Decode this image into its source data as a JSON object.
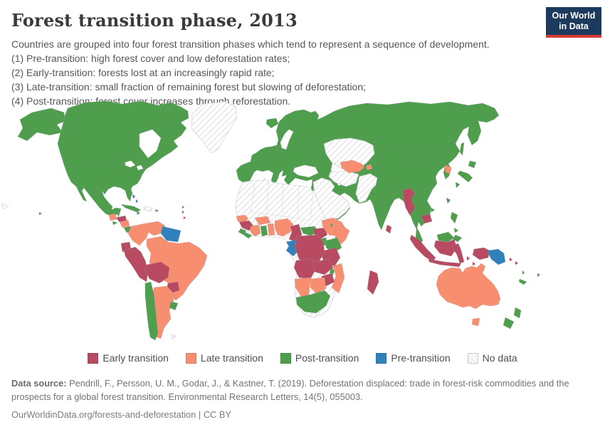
{
  "header": {
    "title": "Forest transition phase, 2013"
  },
  "logo": {
    "line1": "Our World",
    "line2": "in Data",
    "bg_color": "#1c3a5e",
    "bar_color": "#d73a32"
  },
  "subtitle": {
    "lines": [
      "Countries are grouped into four forest transition phases which tend to represent a sequence of development.",
      "(1) Pre-transition: high forest cover and low deforestation rates;",
      "(2) Early-transition: forests lost at an increasingly rapid rate;",
      "(3) Late-transition: small fraction of remaining forest but slowing of deforestation;",
      "(4) Post-transition: forest cover increases through reforestation."
    ]
  },
  "legend": {
    "items": [
      {
        "label": "Early transition",
        "phase": "early"
      },
      {
        "label": "Late transition",
        "phase": "late"
      },
      {
        "label": "Post-transition",
        "phase": "post"
      },
      {
        "label": "Pre-transition",
        "phase": "pre"
      },
      {
        "label": "No data",
        "phase": "no_data"
      }
    ]
  },
  "map": {
    "colors": {
      "early": "#b84a62",
      "late": "#f78e70",
      "post": "#4f9e4e",
      "pre": "#3181bc",
      "no_data": "hatch"
    },
    "phases": {
      "alaska": "post",
      "north-america": "post",
      "iceland": "post",
      "eurasia": "post",
      "cuba": "post",
      "jamaica": "post",
      "puerto-rico": "post",
      "belize": "post",
      "el-salvador": "post",
      "costa-rica": "post",
      "panama": "post",
      "chile": "post",
      "uruguay": "post",
      "sierra-leone": "post",
      "liberia": "post",
      "ghana": "post",
      "central-african-republic": "post",
      "uganda": "post",
      "kenya": "post",
      "rwanda-burundi": "post",
      "malawi": "post",
      "djibouti": "post",
      "south-africa": "post",
      "israel": "post",
      "japan-hokkaido": "post",
      "japan-honshu": "post",
      "japan-kyushu": "post",
      "sakhalin": "post",
      "taiwan": "post",
      "hainan": "post",
      "philippines-luzon": "post",
      "philippines-visayas": "post",
      "philippines-mindanao": "post",
      "borneo-malaysia": "post",
      "new-caledonia": "post",
      "vanuatu": "post",
      "fiji": "post",
      "new-zealand-north": "post",
      "new-zealand-south": "post",
      "hawaii": "post",
      "lesser-antilles-0": "post",
      "honduras": "early",
      "ecuador": "early",
      "peru": "early",
      "bolivia": "early",
      "paraguay": "early",
      "guinea": "early",
      "cameroon": "early",
      "south-sudan": "early",
      "democratic-republic-of-congo": "early",
      "tanzania": "early",
      "angola": "early",
      "zambia": "early",
      "zimbabwe": "early",
      "madagascar": "early",
      "myanmar": "early",
      "cambodia": "early",
      "sri-lanka": "early",
      "sumatra": "early",
      "kalimantan": "early",
      "java": "early",
      "sulawesi": "early",
      "moluccas-1": "early",
      "moluccas-2": "early",
      "moluccas-3": "early",
      "west-papua": "early",
      "solomon-islands-1": "early",
      "solomon-islands-2": "early",
      "lesser-antilles-1": "early",
      "lesser-antilles-2": "early",
      "guatemala": "late",
      "nicaragua": "late",
      "colombia": "late",
      "venezuela": "late",
      "brazil": "late",
      "argentina": "late",
      "senegal": "late",
      "burkina-faso": "late",
      "cote-divoire": "late",
      "togo-benin": "late",
      "nigeria": "late",
      "ethiopia": "late",
      "somalia": "late",
      "mozambique": "late",
      "namibia": "late",
      "botswana": "late",
      "uzbekistan": "late",
      "kyrgyzstan": "late",
      "north-korea": "late",
      "australia": "late",
      "tasmania": "late",
      "guyanas": "pre",
      "bahamas-1": "pre",
      "bahamas-2": "pre",
      "gabon-congo": "pre",
      "papua-new-guinea": "pre",
      "greenland": "no_data",
      "africa-sahara": "no_data",
      "kazakhstan": "no_data",
      "turkmenistan": "no_data",
      "arabia": "no_data",
      "afghanistan-pakistan": "no_data",
      "hispaniola": "no_data",
      "falkland-islands": "no_data",
      "pacific-fragment": "no_data"
    }
  },
  "chart_data": {
    "type": "choropleth-map",
    "title": "Forest transition phase, 2013",
    "categories": [
      "Early transition",
      "Late transition",
      "Post-transition",
      "Pre-transition",
      "No data"
    ],
    "category_colors": {
      "Early transition": "#b84a62",
      "Late transition": "#f78e70",
      "Post-transition": "#4f9e4e",
      "Pre-transition": "#3181bc",
      "No data": "white-hatched"
    },
    "regions_by_category": {
      "Post-transition": [
        "Canada",
        "United States",
        "Mexico",
        "Cuba",
        "Costa Rica",
        "Panama",
        "Chile",
        "Uruguay",
        "Europe",
        "Russia",
        "Turkey",
        "Iran",
        "India",
        "China",
        "Mongolia",
        "South Korea",
        "Japan",
        "Taiwan",
        "Thailand",
        "Laos",
        "Vietnam",
        "Philippines",
        "Malaysia",
        "New Zealand",
        "South Africa",
        "Kenya",
        "Uganda",
        "Ghana",
        "Liberia",
        "Sierra Leone",
        "Central African Republic",
        "Malawi",
        "Iceland"
      ],
      "Early transition": [
        "Honduras",
        "Ecuador",
        "Peru",
        "Bolivia",
        "Paraguay",
        "Guinea",
        "Cameroon",
        "South Sudan",
        "DR Congo",
        "Tanzania",
        "Angola",
        "Zambia",
        "Zimbabwe",
        "Madagascar",
        "Myanmar",
        "Cambodia",
        "Sri Lanka",
        "Indonesia",
        "Solomon Islands"
      ],
      "Late transition": [
        "Guatemala",
        "Nicaragua",
        "Colombia",
        "Venezuela",
        "Brazil",
        "Argentina",
        "Senegal",
        "Burkina Faso",
        "Cote d'Ivoire",
        "Nigeria",
        "Ethiopia",
        "Somalia",
        "Mozambique",
        "Namibia",
        "Botswana",
        "Uzbekistan",
        "Kyrgyzstan",
        "North Korea",
        "Australia"
      ],
      "Pre-transition": [
        "Guyana",
        "Suriname",
        "French Guiana",
        "Bahamas",
        "Gabon",
        "Republic of Congo",
        "Papua New Guinea"
      ],
      "No data": [
        "Greenland",
        "North Africa / Sahara",
        "Kazakhstan",
        "Turkmenistan",
        "Arabian Peninsula",
        "Iraq",
        "Syria",
        "Afghanistan",
        "Pakistan",
        "Hispaniola"
      ]
    },
    "legend_position": "bottom"
  },
  "footer": {
    "source_label": "Data source:",
    "source_text": " Pendrill, F., Persson, U. M., Godar, J., & Kastner, T. (2019). Deforestation displaced: trade in forest-risk commodities and the prospects for a global forest transition. Environmental Research Letters, 14(5), 055003.",
    "cc_line": "OurWorldinData.org/forests-and-deforestation | CC BY"
  }
}
